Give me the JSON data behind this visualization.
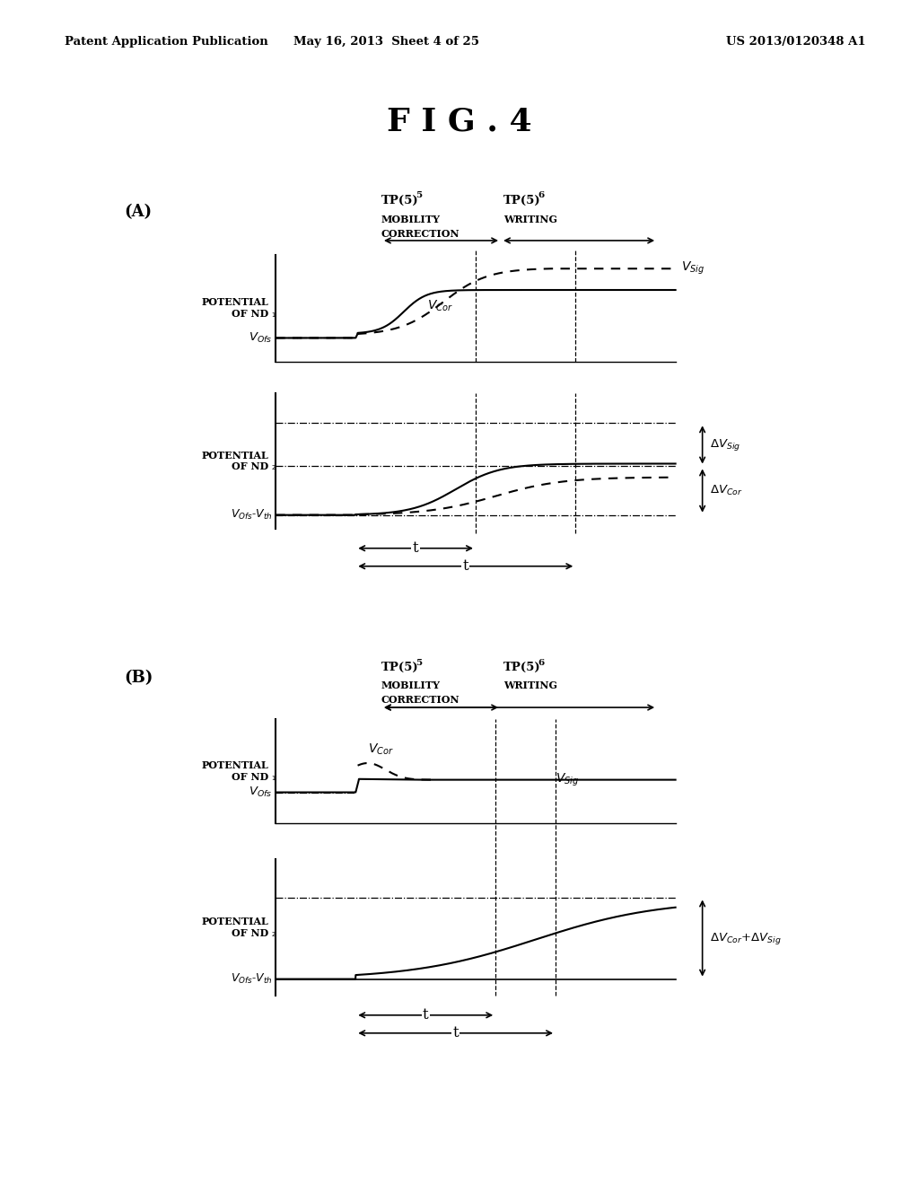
{
  "bg_color": "#ffffff",
  "header_left": "Patent Application Publication",
  "header_mid": "May 16, 2013  Sheet 4 of 25",
  "header_right": "US 2013/0120348 A1",
  "fig_title": "F I G . 4"
}
